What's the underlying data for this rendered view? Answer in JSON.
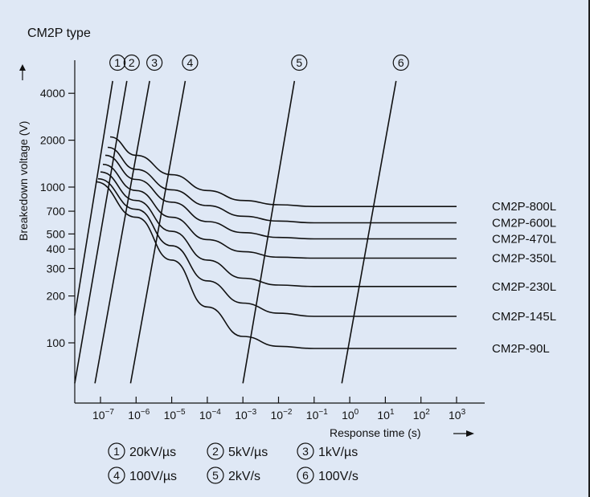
{
  "chart_data": {
    "type": "line",
    "title": "CM2P type",
    "xlabel": "Response time (s)",
    "ylabel": "Breakedown voltage (V)",
    "x_scale": "log",
    "y_scale": "log",
    "xlim": [
      1e-08,
      3000.0
    ],
    "ylim": [
      55,
      6000
    ],
    "x_ticks": [
      {
        "exp": "-7",
        "value": 1e-07
      },
      {
        "exp": "-6",
        "value": 1e-06
      },
      {
        "exp": "-5",
        "value": 1e-05
      },
      {
        "exp": "-4",
        "value": 0.0001
      },
      {
        "exp": "-3",
        "value": 0.001
      },
      {
        "exp": "-2",
        "value": 0.01
      },
      {
        "exp": "-1",
        "value": 0.1
      },
      {
        "exp": "0",
        "value": 1
      },
      {
        "exp": "1",
        "value": 10
      },
      {
        "exp": "2",
        "value": 100
      },
      {
        "exp": "3",
        "value": 1000
      }
    ],
    "x_tick_base": "10",
    "y_ticks": [
      100,
      200,
      300,
      400,
      500,
      700,
      1000,
      2000,
      4000
    ],
    "series": [
      {
        "name": "CM2P-800L",
        "x": [
          1e-07,
          1e-06,
          1e-05,
          0.0001,
          0.001,
          0.01,
          0.1,
          1,
          10,
          100,
          1000
        ],
        "y": [
          2100,
          1600,
          1200,
          950,
          820,
          770,
          750,
          750,
          750,
          750,
          750
        ]
      },
      {
        "name": "CM2P-600L",
        "x": [
          1e-07,
          1e-06,
          1e-05,
          0.0001,
          0.001,
          0.01,
          0.1,
          1,
          10,
          100,
          1000
        ],
        "y": [
          1800,
          1300,
          960,
          760,
          650,
          605,
          590,
          590,
          590,
          590,
          590
        ]
      },
      {
        "name": "CM2P-470L",
        "x": [
          1e-07,
          1e-06,
          1e-05,
          0.0001,
          0.001,
          0.01,
          0.1,
          1,
          10,
          100,
          1000
        ],
        "y": [
          1600,
          1120,
          800,
          600,
          510,
          475,
          465,
          465,
          465,
          465,
          465
        ]
      },
      {
        "name": "CM2P-350L",
        "x": [
          1e-07,
          1e-06,
          1e-05,
          0.0001,
          0.001,
          0.01,
          0.1,
          1,
          10,
          100,
          1000
        ],
        "y": [
          1400,
          950,
          640,
          460,
          385,
          355,
          350,
          350,
          350,
          350,
          350
        ]
      },
      {
        "name": "CM2P-230L",
        "x": [
          1e-07,
          1e-06,
          1e-05,
          0.0001,
          0.001,
          0.01,
          0.1,
          1,
          10,
          100,
          1000
        ],
        "y": [
          1250,
          820,
          520,
          340,
          260,
          235,
          230,
          230,
          230,
          230,
          230
        ]
      },
      {
        "name": "CM2P-145L",
        "x": [
          1e-07,
          1e-06,
          1e-05,
          0.0001,
          0.001,
          0.01,
          0.1,
          1,
          10,
          100,
          1000
        ],
        "y": [
          1130,
          720,
          420,
          250,
          180,
          155,
          148,
          148,
          148,
          148,
          148
        ]
      },
      {
        "name": "CM2P-90L",
        "x": [
          1e-07,
          1e-06,
          1e-05,
          0.0001,
          0.001,
          0.01,
          0.1,
          1,
          10,
          100,
          1000
        ],
        "y": [
          1080,
          640,
          340,
          170,
          110,
          95,
          92,
          92,
          92,
          92,
          92
        ]
      }
    ],
    "rate_lines": [
      {
        "id": "1",
        "label": "20kV/µs",
        "x": [
          1.5e-08,
          2.2e-07
        ],
        "y": [
          150,
          4800
        ]
      },
      {
        "id": "2",
        "label": "5kV/µs",
        "x": [
          1.5e-08,
          5.5e-07
        ],
        "y": [
          55,
          4800
        ]
      },
      {
        "id": "3",
        "label": "1kV/µs",
        "x": [
          7e-08,
          2.4e-06
        ],
        "y": [
          55,
          4800
        ]
      },
      {
        "id": "4",
        "label": "100V/µs",
        "x": [
          7e-07,
          2.4e-05
        ],
        "y": [
          55,
          4800
        ]
      },
      {
        "id": "5",
        "label": "2kV/s",
        "x": [
          0.001,
          0.028
        ],
        "y": [
          55,
          4800
        ]
      },
      {
        "id": "6",
        "label": "100V/s",
        "x": [
          0.6,
          20
        ],
        "y": [
          55,
          4800
        ]
      }
    ]
  }
}
